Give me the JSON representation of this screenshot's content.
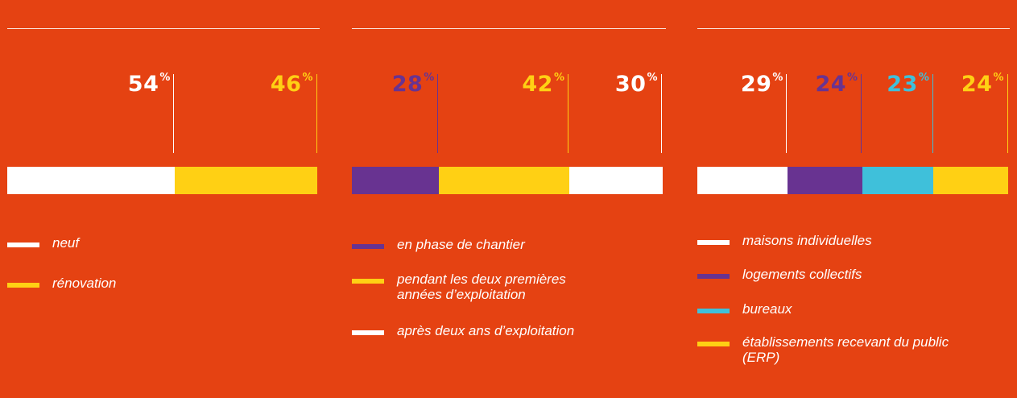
{
  "chart_data": [
    {
      "type": "bar",
      "stacked": true,
      "orientation": "horizontal",
      "series": [
        {
          "name": "neuf",
          "value": 54,
          "label": "54",
          "color": "#FFFFFF"
        },
        {
          "name": "rénovation",
          "value": 46,
          "label": "46",
          "color": "#FFD014"
        }
      ],
      "percent_symbol": "%"
    },
    {
      "type": "bar",
      "stacked": true,
      "orientation": "horizontal",
      "series": [
        {
          "name": "en phase de chantier",
          "value": 28,
          "label": "28",
          "color": "#683391"
        },
        {
          "name": "pendant les deux premières années d’exploitation",
          "lines": [
            "pendant les deux premières",
            "années d’exploitation"
          ],
          "value": 42,
          "label": "42",
          "color": "#FFD014"
        },
        {
          "name": "après deux ans d’exploitation",
          "value": 30,
          "label": "30",
          "color": "#FFFFFF"
        }
      ],
      "percent_symbol": "%"
    },
    {
      "type": "bar",
      "stacked": true,
      "orientation": "horizontal",
      "series": [
        {
          "name": "maisons individuelles",
          "value": 29,
          "label": "29",
          "color": "#FFFFFF"
        },
        {
          "name": "logements collectifs",
          "value": 24,
          "label": "24",
          "color": "#683391"
        },
        {
          "name": "bureaux",
          "value": 23,
          "label": "23",
          "color": "#3FC0DA"
        },
        {
          "name": "établissements recevant du public (ERP)",
          "lines": [
            "établissements recevant du public",
            "(ERP)"
          ],
          "value": 24,
          "label": "24",
          "color": "#FFD014"
        }
      ],
      "percent_symbol": "%"
    }
  ]
}
